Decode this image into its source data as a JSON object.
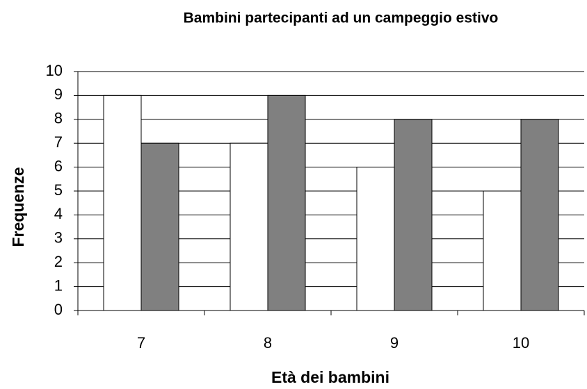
{
  "chart_data": {
    "type": "bar",
    "title": "Bambini partecipanti ad un campeggio estivo",
    "x_label": "Età dei bambini",
    "y_label": "Frequenze",
    "categories": [
      "7",
      "8",
      "9",
      "10"
    ],
    "series": [
      {
        "color": "#ffffff",
        "values": [
          9,
          7,
          6,
          5
        ]
      },
      {
        "color": "#808080",
        "values": [
          7,
          9,
          8,
          8
        ]
      }
    ],
    "ylim": [
      0,
      10
    ],
    "yticks": [
      0,
      1,
      2,
      3,
      4,
      5,
      6,
      7,
      8,
      9,
      10
    ],
    "grid": true
  }
}
